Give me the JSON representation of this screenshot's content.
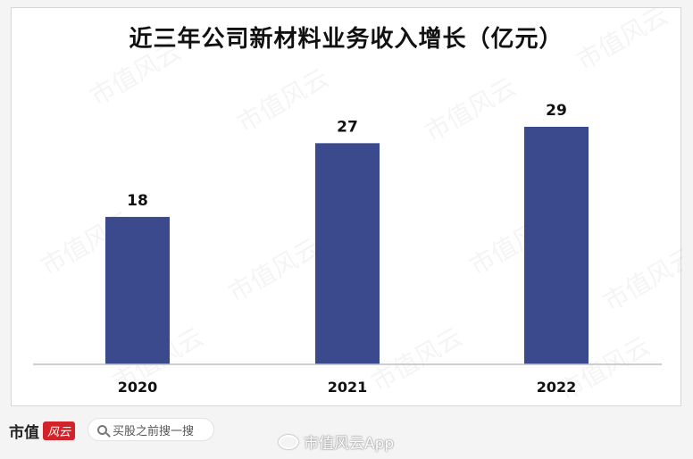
{
  "chart_data": {
    "type": "bar",
    "title": "近三年公司新材料业务收入增长（亿元）",
    "categories": [
      "2020",
      "2021",
      "2022"
    ],
    "values": [
      18,
      27,
      29
    ],
    "ylim": [
      0,
      29
    ],
    "grid": false,
    "legend": "none",
    "bar_color": "#3a4a8c"
  },
  "watermark": "市值风云",
  "footer": {
    "brand_text": "市值",
    "brand_badge": "风云",
    "search_placeholder": "买股之前搜一搜",
    "weibo_label": "市值风云App"
  }
}
